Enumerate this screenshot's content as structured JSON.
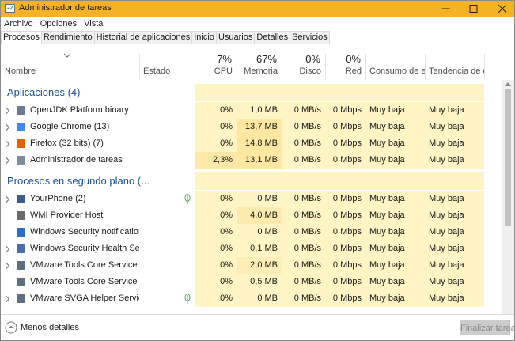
{
  "window": {
    "title": "Administrador de tareas"
  },
  "menu": [
    "Archivo",
    "Opciones",
    "Vista"
  ],
  "tabs": [
    "Procesos",
    "Rendimiento",
    "Historial de aplicaciones",
    "Inicio",
    "Usuarios",
    "Detalles",
    "Servicios"
  ],
  "columns": [
    {
      "label": "Nombre"
    },
    {
      "label": "Estado"
    },
    {
      "usage": "7%",
      "label": "CPU"
    },
    {
      "usage": "67%",
      "label": "Memoria"
    },
    {
      "usage": "0%",
      "label": "Disco"
    },
    {
      "usage": "0%",
      "label": "Red"
    },
    {
      "label": "Consumo de e..."
    },
    {
      "label": "Tendencia de c..."
    }
  ],
  "groups": [
    {
      "title": "Aplicaciones (4)",
      "rows": [
        [
          "OpenJDK Platform binary",
          "0%",
          "1,0 MB",
          "0 MB/s",
          "0 Mbps",
          "Muy baja",
          "Muy baja"
        ],
        [
          "Google Chrome (13)",
          "0%",
          "13,7 MB",
          "0 MB/s",
          "0 Mbps",
          "Muy baja",
          "Muy baja"
        ],
        [
          "Firefox (32 bits) (7)",
          "0%",
          "14,8 MB",
          "0 MB/s",
          "0 Mbps",
          "Muy baja",
          "Muy baja"
        ],
        [
          "Administrador de tareas",
          "2,3%",
          "13,1 MB",
          "0 MB/s",
          "0 Mbps",
          "Muy baja",
          "Muy baja"
        ]
      ]
    },
    {
      "title": "Procesos en segundo plano (...",
      "rows": [
        [
          "YourPhone (2)",
          "0%",
          "0 MB",
          "0 MB/s",
          "0 Mbps",
          "Muy baja",
          "Muy baja"
        ],
        [
          "WMI Provider Host",
          "0%",
          "4,0 MB",
          "0 MB/s",
          "0 Mbps",
          "Muy baja",
          "Muy baja"
        ],
        [
          "Windows Security notification ic...",
          "0%",
          "0 MB",
          "0 MB/s",
          "0 Mbps",
          "Muy baja",
          "Muy baja"
        ],
        [
          "Windows Security Health Service",
          "0%",
          "0,1 MB",
          "0 MB/s",
          "0 Mbps",
          "Muy baja",
          "Muy baja"
        ],
        [
          "VMware Tools Core Service",
          "0%",
          "2,0 MB",
          "0 MB/s",
          "0 Mbps",
          "Muy baja",
          "Muy baja"
        ],
        [
          "VMware Tools Core Service",
          "0%",
          "0,5 MB",
          "0 MB/s",
          "0 Mbps",
          "Muy baja",
          "Muy baja"
        ],
        [
          "VMware SVGA Helper Service",
          "0%",
          "0 MB",
          "0 MB/s",
          "0 Mbps",
          "Muy baja",
          "Muy baja"
        ]
      ]
    }
  ],
  "footer": {
    "less_details": "Menos detalles",
    "end_task": "Finalizar tarea"
  }
}
